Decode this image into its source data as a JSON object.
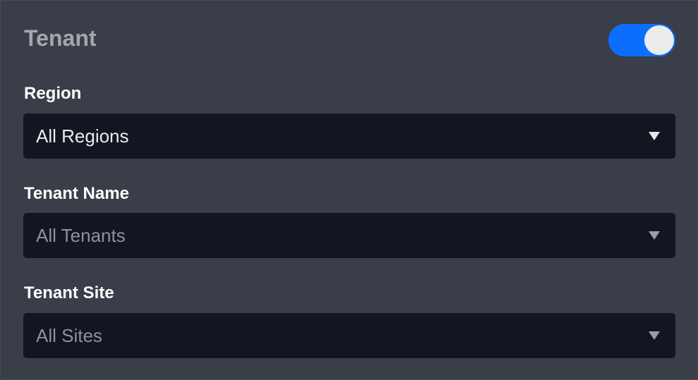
{
  "panel": {
    "title": "Tenant",
    "toggle": {
      "on": true,
      "color": "#0d6efd"
    },
    "fields": [
      {
        "label": "Region",
        "value": "All Regions"
      },
      {
        "label": "Tenant Name",
        "value": "All Tenants"
      },
      {
        "label": "Tenant Site",
        "value": "All Sites"
      }
    ]
  }
}
